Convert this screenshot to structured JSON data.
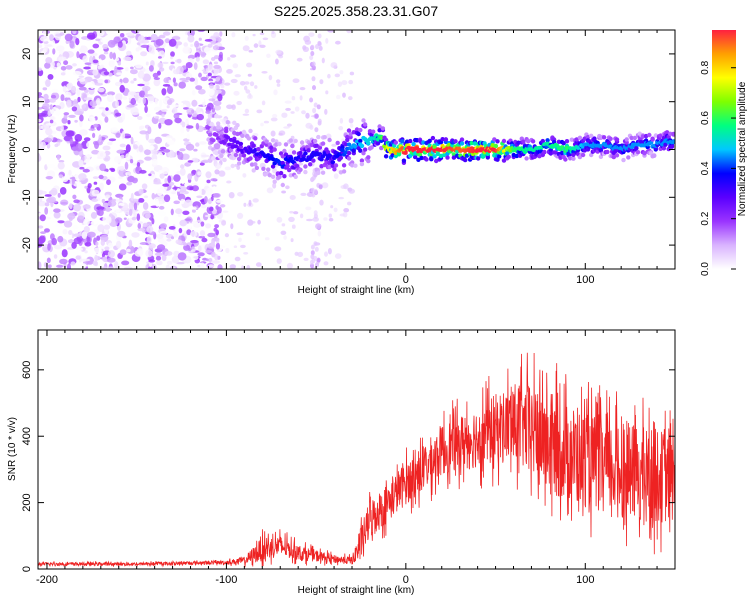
{
  "title": "S225.2025.358.23.31.G07",
  "chart_data": [
    {
      "type": "heatmap",
      "name": "spectrogram",
      "title": "S225.2025.358.23.31.G07",
      "xlabel": "Height of straight line (km)",
      "ylabel": "Frequency (Hz)",
      "xlim": [
        -205,
        150
      ],
      "ylim": [
        -25,
        25
      ],
      "xticks": [
        -200,
        -100,
        0,
        100
      ],
      "yticks": [
        -20,
        -10,
        0,
        10,
        20
      ],
      "colorbar": {
        "label": "Normalized spectral amplitude",
        "range": [
          0.0,
          0.95
        ],
        "ticks": [
          "0.0",
          "0.2",
          "0.4",
          "0.6",
          "0.8"
        ],
        "tick_values": [
          0.0,
          0.2,
          0.4,
          0.6,
          0.8
        ],
        "colors": [
          "#ffffff",
          "#d9b3ff",
          "#9a33ff",
          "#5a00ff",
          "#0000ff",
          "#00c8ff",
          "#00ff80",
          "#7fff00",
          "#ffff00",
          "#ffa000",
          "#ff2040"
        ]
      },
      "signal_track": {
        "x": [
          -110,
          -100,
          -90,
          -80,
          -70,
          -60,
          -50,
          -40,
          -30,
          -20,
          -15,
          -10,
          0,
          10,
          20,
          30,
          40,
          50,
          60,
          70,
          80,
          90,
          100,
          110,
          120,
          130,
          140,
          150
        ],
        "y": [
          3,
          2,
          0,
          -1,
          -3,
          -2,
          -1,
          -2,
          1,
          2,
          3,
          0,
          0,
          0,
          0,
          0,
          0,
          0,
          0,
          0,
          1,
          0,
          1,
          1,
          0,
          1,
          1,
          2
        ],
        "peak_amplitude": [
          0.15,
          0.25,
          0.3,
          0.35,
          0.4,
          0.35,
          0.35,
          0.35,
          0.45,
          0.5,
          0.55,
          0.75,
          0.95,
          0.95,
          0.95,
          0.9,
          0.95,
          0.95,
          0.6,
          0.55,
          0.55,
          0.6,
          0.45,
          0.45,
          0.45,
          0.45,
          0.45,
          0.45
        ]
      },
      "noise_region": {
        "x_range": [
          -205,
          -110
        ],
        "amplitude_range": [
          0.0,
          0.2
        ]
      }
    },
    {
      "type": "line",
      "name": "snr",
      "xlabel": "Height of straight line (km)",
      "ylabel": "SNR (10 * v/v)",
      "xlim": [
        -205,
        150
      ],
      "ylim": [
        0,
        720
      ],
      "xticks": [
        -200,
        -100,
        0,
        100
      ],
      "yticks": [
        0,
        200,
        400,
        600
      ],
      "series": [
        {
          "name": "SNR",
          "color": "#ee2222",
          "x": [
            -205,
            -180,
            -150,
            -120,
            -100,
            -90,
            -80,
            -70,
            -60,
            -50,
            -40,
            -30,
            -25,
            -20,
            -10,
            0,
            10,
            20,
            30,
            40,
            50,
            60,
            70,
            80,
            90,
            100,
            110,
            120,
            130,
            140,
            150
          ],
          "mean": [
            15,
            15,
            15,
            18,
            20,
            25,
            60,
            70,
            50,
            40,
            30,
            25,
            80,
            150,
            200,
            260,
            300,
            360,
            380,
            400,
            420,
            440,
            420,
            380,
            350,
            330,
            310,
            300,
            290,
            280,
            270
          ],
          "spread": [
            8,
            8,
            8,
            8,
            10,
            20,
            60,
            55,
            40,
            30,
            20,
            20,
            80,
            100,
            100,
            110,
            120,
            130,
            140,
            160,
            180,
            200,
            240,
            260,
            250,
            240,
            240,
            240,
            240,
            240,
            220
          ]
        }
      ]
    }
  ]
}
